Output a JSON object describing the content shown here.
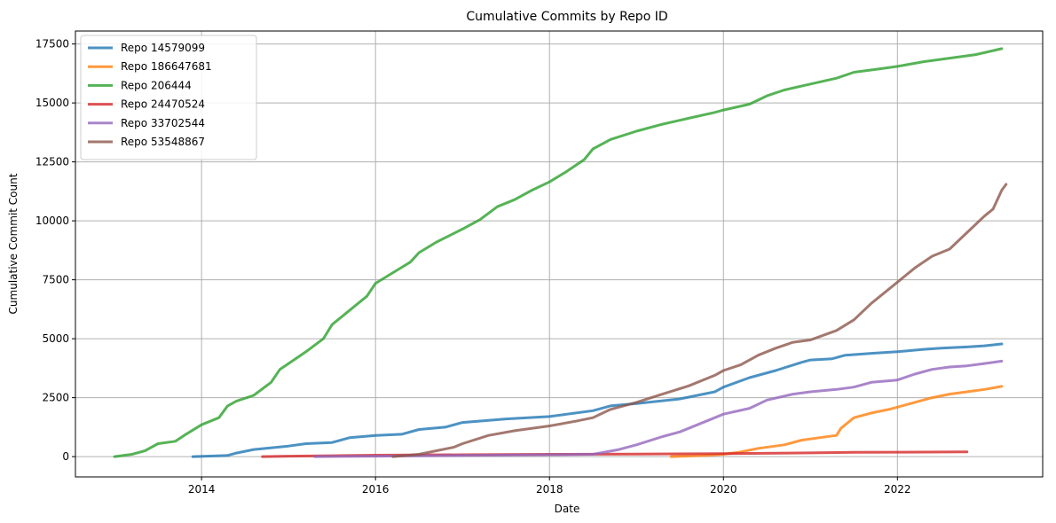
{
  "chart_data": {
    "type": "line",
    "title": "Cumulative Commits by Repo ID",
    "xlabel": "Date",
    "ylabel": "Cumulative Commit Count",
    "xlim": [
      2012.55,
      2023.67
    ],
    "ylim": [
      -860,
      18050
    ],
    "x_ticks": [
      2014,
      2016,
      2018,
      2020,
      2022
    ],
    "y_ticks": [
      0,
      2500,
      5000,
      7500,
      10000,
      12500,
      15000,
      17500
    ],
    "grid": true,
    "legend_position": "top-left",
    "series": [
      {
        "name": "Repo 14579099",
        "color": "#1f77b4",
        "points": [
          [
            2013.9,
            0
          ],
          [
            2014.3,
            50
          ],
          [
            2014.4,
            150
          ],
          [
            2014.6,
            300
          ],
          [
            2015.0,
            450
          ],
          [
            2015.2,
            550
          ],
          [
            2015.5,
            600
          ],
          [
            2015.7,
            800
          ],
          [
            2016.0,
            900
          ],
          [
            2016.3,
            950
          ],
          [
            2016.5,
            1150
          ],
          [
            2016.8,
            1250
          ],
          [
            2017.0,
            1450
          ],
          [
            2017.5,
            1600
          ],
          [
            2018.0,
            1700
          ],
          [
            2018.5,
            1950
          ],
          [
            2018.7,
            2150
          ],
          [
            2019.0,
            2250
          ],
          [
            2019.5,
            2450
          ],
          [
            2019.9,
            2750
          ],
          [
            2020.0,
            2950
          ],
          [
            2020.3,
            3350
          ],
          [
            2020.6,
            3650
          ],
          [
            2020.9,
            4000
          ],
          [
            2021.0,
            4100
          ],
          [
            2021.25,
            4150
          ],
          [
            2021.4,
            4300
          ],
          [
            2021.7,
            4380
          ],
          [
            2022.0,
            4450
          ],
          [
            2022.3,
            4550
          ],
          [
            2022.5,
            4600
          ],
          [
            2022.8,
            4650
          ],
          [
            2023.0,
            4700
          ],
          [
            2023.2,
            4780
          ]
        ]
      },
      {
        "name": "Repo 186647681",
        "color": "#ff7f0e",
        "points": [
          [
            2019.4,
            0
          ],
          [
            2019.8,
            50
          ],
          [
            2020.0,
            100
          ],
          [
            2020.2,
            200
          ],
          [
            2020.4,
            350
          ],
          [
            2020.7,
            500
          ],
          [
            2020.9,
            700
          ],
          [
            2021.1,
            800
          ],
          [
            2021.3,
            900
          ],
          [
            2021.35,
            1200
          ],
          [
            2021.5,
            1650
          ],
          [
            2021.7,
            1850
          ],
          [
            2021.9,
            2000
          ],
          [
            2022.0,
            2100
          ],
          [
            2022.2,
            2300
          ],
          [
            2022.4,
            2500
          ],
          [
            2022.6,
            2650
          ],
          [
            2022.8,
            2750
          ],
          [
            2023.0,
            2850
          ],
          [
            2023.2,
            2980
          ]
        ]
      },
      {
        "name": "Repo 206444",
        "color": "#2ca02c",
        "points": [
          [
            2013.0,
            0
          ],
          [
            2013.2,
            100
          ],
          [
            2013.35,
            250
          ],
          [
            2013.5,
            550
          ],
          [
            2013.7,
            650
          ],
          [
            2013.8,
            900
          ],
          [
            2014.0,
            1350
          ],
          [
            2014.2,
            1650
          ],
          [
            2014.3,
            2150
          ],
          [
            2014.4,
            2350
          ],
          [
            2014.6,
            2600
          ],
          [
            2014.8,
            3150
          ],
          [
            2014.9,
            3700
          ],
          [
            2015.0,
            3950
          ],
          [
            2015.2,
            4450
          ],
          [
            2015.4,
            5000
          ],
          [
            2015.5,
            5600
          ],
          [
            2015.7,
            6200
          ],
          [
            2015.9,
            6800
          ],
          [
            2016.0,
            7350
          ],
          [
            2016.2,
            7800
          ],
          [
            2016.4,
            8250
          ],
          [
            2016.5,
            8650
          ],
          [
            2016.7,
            9100
          ],
          [
            2017.0,
            9650
          ],
          [
            2017.2,
            10050
          ],
          [
            2017.4,
            10600
          ],
          [
            2017.6,
            10900
          ],
          [
            2017.8,
            11300
          ],
          [
            2018.0,
            11650
          ],
          [
            2018.2,
            12100
          ],
          [
            2018.4,
            12600
          ],
          [
            2018.5,
            13050
          ],
          [
            2018.7,
            13450
          ],
          [
            2019.0,
            13800
          ],
          [
            2019.3,
            14100
          ],
          [
            2019.6,
            14350
          ],
          [
            2019.9,
            14600
          ],
          [
            2020.0,
            14700
          ],
          [
            2020.3,
            14950
          ],
          [
            2020.5,
            15300
          ],
          [
            2020.7,
            15550
          ],
          [
            2021.0,
            15800
          ],
          [
            2021.3,
            16050
          ],
          [
            2021.5,
            16300
          ],
          [
            2021.8,
            16450
          ],
          [
            2022.0,
            16550
          ],
          [
            2022.3,
            16750
          ],
          [
            2022.6,
            16900
          ],
          [
            2022.9,
            17050
          ],
          [
            2023.2,
            17300
          ]
        ]
      },
      {
        "name": "Repo 24470524",
        "color": "#d62728",
        "points": [
          [
            2014.7,
            0
          ],
          [
            2015.0,
            20
          ],
          [
            2015.5,
            40
          ],
          [
            2016.0,
            60
          ],
          [
            2017.0,
            80
          ],
          [
            2018.0,
            100
          ],
          [
            2019.0,
            110
          ],
          [
            2020.0,
            130
          ],
          [
            2021.0,
            160
          ],
          [
            2021.5,
            180
          ],
          [
            2022.0,
            190
          ],
          [
            2022.8,
            200
          ]
        ]
      },
      {
        "name": "Repo 33702544",
        "color": "#9467bd",
        "points": [
          [
            2015.3,
            0
          ],
          [
            2016.0,
            20
          ],
          [
            2017.0,
            50
          ],
          [
            2018.0,
            80
          ],
          [
            2018.5,
            100
          ],
          [
            2018.8,
            300
          ],
          [
            2019.0,
            500
          ],
          [
            2019.3,
            850
          ],
          [
            2019.5,
            1050
          ],
          [
            2019.7,
            1350
          ],
          [
            2020.0,
            1800
          ],
          [
            2020.3,
            2050
          ],
          [
            2020.5,
            2400
          ],
          [
            2020.8,
            2650
          ],
          [
            2021.0,
            2750
          ],
          [
            2021.3,
            2850
          ],
          [
            2021.5,
            2950
          ],
          [
            2021.7,
            3150
          ],
          [
            2022.0,
            3250
          ],
          [
            2022.2,
            3500
          ],
          [
            2022.4,
            3700
          ],
          [
            2022.6,
            3800
          ],
          [
            2022.8,
            3850
          ],
          [
            2023.0,
            3950
          ],
          [
            2023.2,
            4050
          ]
        ]
      },
      {
        "name": "Repo 53548867",
        "color": "#8c564b",
        "points": [
          [
            2016.2,
            0
          ],
          [
            2016.5,
            100
          ],
          [
            2016.7,
            250
          ],
          [
            2016.9,
            400
          ],
          [
            2017.0,
            550
          ],
          [
            2017.3,
            900
          ],
          [
            2017.6,
            1100
          ],
          [
            2018.0,
            1300
          ],
          [
            2018.3,
            1500
          ],
          [
            2018.5,
            1650
          ],
          [
            2018.7,
            2000
          ],
          [
            2019.0,
            2300
          ],
          [
            2019.3,
            2650
          ],
          [
            2019.6,
            3000
          ],
          [
            2019.9,
            3450
          ],
          [
            2020.0,
            3650
          ],
          [
            2020.2,
            3900
          ],
          [
            2020.4,
            4300
          ],
          [
            2020.6,
            4600
          ],
          [
            2020.8,
            4850
          ],
          [
            2021.0,
            4950
          ],
          [
            2021.3,
            5350
          ],
          [
            2021.5,
            5800
          ],
          [
            2021.7,
            6500
          ],
          [
            2021.9,
            7100
          ],
          [
            2022.0,
            7400
          ],
          [
            2022.2,
            8000
          ],
          [
            2022.4,
            8500
          ],
          [
            2022.6,
            8800
          ],
          [
            2022.8,
            9500
          ],
          [
            2023.0,
            10200
          ],
          [
            2023.1,
            10500
          ],
          [
            2023.2,
            11300
          ],
          [
            2023.25,
            11550
          ]
        ]
      }
    ]
  }
}
